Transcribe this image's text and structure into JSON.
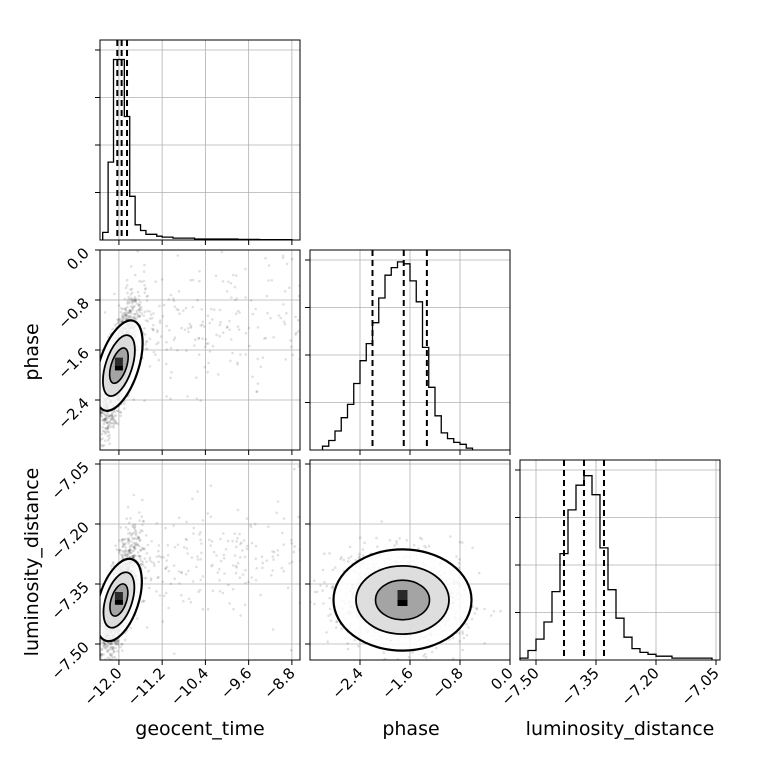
{
  "chart_data": {
    "type": "corner",
    "parameters": [
      "geocent_time",
      "phase",
      "luminosity_distance"
    ],
    "grid": true,
    "ranges": {
      "geocent_time": [
        -12.35,
        -8.65
      ],
      "phase": [
        -3.2,
        0.0
      ],
      "luminosity_distance": [
        -7.54,
        -7.04
      ]
    },
    "ticks": {
      "geocent_time": [
        "-12.0",
        "-11.2",
        "-10.4",
        "-9.6",
        "-8.8"
      ],
      "phase": [
        "-2.4",
        "-1.6",
        "-0.8",
        "0.0"
      ],
      "luminosity_distance": [
        "-7.50",
        "-7.35",
        "-7.20",
        "-7.05"
      ]
    },
    "tick_values": {
      "geocent_time": [
        -12.0,
        -11.2,
        -10.4,
        -9.6,
        -8.8
      ],
      "phase": [
        -2.4,
        -1.6,
        -0.8,
        0.0
      ],
      "luminosity_distance": [
        -7.5,
        -7.35,
        -7.2,
        -7.05
      ]
    },
    "quantiles": {
      "geocent_time": [
        -12.03,
        -11.95,
        -11.85
      ],
      "phase": [
        -2.2,
        -1.7,
        -1.33
      ],
      "luminosity_distance": [
        -7.43,
        -7.38,
        -7.33
      ]
    },
    "histograms": {
      "geocent_time": {
        "bins": [
          -12.3,
          -12.2,
          -12.1,
          -12.0,
          -11.9,
          -11.8,
          -11.7,
          -11.6,
          -11.5,
          -11.4,
          -11.3,
          -11.2,
          -11.0,
          -10.8,
          -10.6,
          -10.4,
          -10.2,
          -10.0,
          -9.8,
          -9.6,
          -9.4,
          -9.2,
          -9.0,
          -8.8
        ],
        "counts": [
          0.04,
          0.41,
          0.95,
          0.95,
          0.65,
          0.23,
          0.08,
          0.05,
          0.03,
          0.03,
          0.02,
          0.015,
          0.01,
          0.01,
          0.005,
          0.005,
          0.005,
          0.005,
          0.003,
          0.003,
          0.002,
          0.002,
          0.002
        ]
      },
      "phase": {
        "bins": [
          -3.0,
          -2.9,
          -2.8,
          -2.7,
          -2.6,
          -2.5,
          -2.4,
          -2.3,
          -2.2,
          -2.1,
          -2.0,
          -1.9,
          -1.8,
          -1.7,
          -1.6,
          -1.5,
          -1.4,
          -1.3,
          -1.2,
          -1.1,
          -1.0,
          -0.9,
          -0.8,
          -0.7,
          -0.6
        ],
        "counts": [
          0.02,
          0.05,
          0.1,
          0.17,
          0.24,
          0.35,
          0.47,
          0.56,
          0.67,
          0.8,
          0.92,
          0.96,
          0.99,
          0.98,
          0.89,
          0.78,
          0.54,
          0.33,
          0.18,
          0.09,
          0.06,
          0.04,
          0.03,
          0.01
        ]
      },
      "luminosity_distance": {
        "bins": [
          -7.54,
          -7.52,
          -7.5,
          -7.48,
          -7.46,
          -7.44,
          -7.42,
          -7.4,
          -7.38,
          -7.36,
          -7.34,
          -7.32,
          -7.3,
          -7.28,
          -7.26,
          -7.24,
          -7.22,
          -7.2,
          -7.18,
          -7.16,
          -7.14,
          -7.12,
          -7.1,
          -7.08,
          -7.06
        ],
        "counts": [
          0.01,
          0.05,
          0.11,
          0.2,
          0.36,
          0.56,
          0.79,
          0.92,
          0.97,
          0.87,
          0.59,
          0.37,
          0.22,
          0.12,
          0.06,
          0.04,
          0.03,
          0.02,
          0.02,
          0.01,
          0.01,
          0.01,
          0.01,
          0.01
        ]
      }
    },
    "peaks": {
      "geocent_time_vs_phase": [
        -12.0,
        -1.8
      ],
      "geocent_time_vs_luminosity_distance": [
        -12.0,
        -7.39
      ],
      "phase_vs_luminosity_distance": [
        -1.75,
        -7.39
      ]
    }
  }
}
